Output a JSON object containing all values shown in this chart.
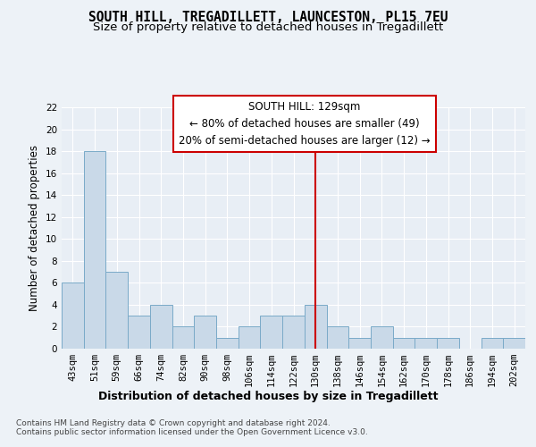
{
  "title1": "SOUTH HILL, TREGADILLETT, LAUNCESTON, PL15 7EU",
  "title2": "Size of property relative to detached houses in Tregadillett",
  "xlabel": "Distribution of detached houses by size in Tregadillett",
  "ylabel": "Number of detached properties",
  "categories": [
    "43sqm",
    "51sqm",
    "59sqm",
    "66sqm",
    "74sqm",
    "82sqm",
    "90sqm",
    "98sqm",
    "106sqm",
    "114sqm",
    "122sqm",
    "130sqm",
    "138sqm",
    "146sqm",
    "154sqm",
    "162sqm",
    "170sqm",
    "178sqm",
    "186sqm",
    "194sqm",
    "202sqm"
  ],
  "values": [
    6,
    18,
    7,
    3,
    4,
    2,
    3,
    1,
    2,
    3,
    3,
    4,
    2,
    1,
    2,
    1,
    1,
    1,
    0,
    1,
    1
  ],
  "bar_color": "#c9d9e8",
  "bar_edge_color": "#7aaac8",
  "vline_x": 11,
  "vline_color": "#cc0000",
  "annotation_text": "SOUTH HILL: 129sqm\n← 80% of detached houses are smaller (49)\n20% of semi-detached houses are larger (12) →",
  "annotation_box_color": "#cc0000",
  "ylim": [
    0,
    22
  ],
  "yticks": [
    0,
    2,
    4,
    6,
    8,
    10,
    12,
    14,
    16,
    18,
    20,
    22
  ],
  "footnote": "Contains HM Land Registry data © Crown copyright and database right 2024.\nContains public sector information licensed under the Open Government Licence v3.0.",
  "bg_color": "#edf2f7",
  "plot_bg_color": "#e8eef5",
  "grid_color": "#ffffff",
  "title1_fontsize": 10.5,
  "title2_fontsize": 9.5,
  "xlabel_fontsize": 9,
  "ylabel_fontsize": 8.5,
  "tick_fontsize": 7.5,
  "annotation_fontsize": 8.5,
  "footnote_fontsize": 6.5
}
